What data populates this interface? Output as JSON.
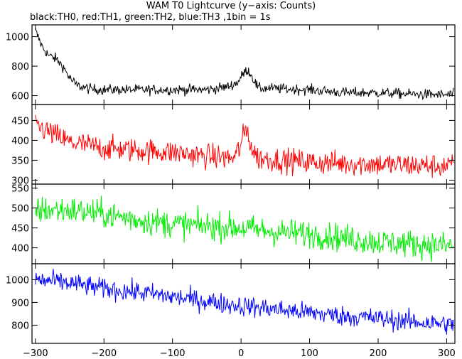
{
  "title": "WAM T0 Lightcurve (y−axis: Counts)",
  "subtitle": "black:TH0, red:TH1, green:TH2, blue:TH3 ,1bin = 1s",
  "chart_data": {
    "type": "line",
    "x_range": [
      -305,
      312
    ],
    "x_ticks": [
      -300,
      -200,
      -100,
      0,
      100,
      200,
      300
    ],
    "x_tick_labels": [
      "−300",
      "−200",
      "−100",
      "0",
      "100",
      "200",
      "300"
    ],
    "panels": [
      {
        "name": "TH0",
        "color": "#000000",
        "ylim": [
          540,
          1080
        ],
        "y_ticks": [
          600,
          800,
          1000
        ],
        "y_tick_labels": [
          "600",
          "800",
          "1000"
        ],
        "x": [
          -300,
          -290,
          -280,
          -270,
          -260,
          -250,
          -240,
          -220,
          -200,
          -150,
          -100,
          -50,
          -20,
          -5,
          5,
          10,
          15,
          25,
          40,
          100,
          150,
          200,
          250,
          300,
          310
        ],
        "y": [
          1040,
          930,
          870,
          850,
          800,
          720,
          670,
          645,
          640,
          640,
          640,
          640,
          660,
          690,
          760,
          775,
          740,
          650,
          650,
          640,
          620,
          620,
          610,
          605,
          610
        ],
        "noise": 25
      },
      {
        "name": "TH1",
        "color": "#ff0000",
        "ylim": [
          290,
          490
        ],
        "y_ticks": [
          300,
          350,
          400,
          450
        ],
        "y_tick_labels": [
          "300",
          "350",
          "400",
          "450"
        ],
        "x": [
          -300,
          -280,
          -250,
          -200,
          -150,
          -100,
          -50,
          -10,
          0,
          5,
          10,
          15,
          25,
          100,
          200,
          300,
          310
        ],
        "y": [
          440,
          420,
          395,
          380,
          375,
          370,
          360,
          355,
          390,
          420,
          425,
          380,
          355,
          345,
          340,
          335,
          335
        ],
        "noise": 22
      },
      {
        "name": "TH2",
        "color": "#00ee00",
        "ylim": [
          360,
          560
        ],
        "y_ticks": [
          400,
          450,
          500,
          550
        ],
        "y_tick_labels": [
          "400",
          "450",
          "500",
          "550"
        ],
        "x": [
          -300,
          -250,
          -200,
          -150,
          -100,
          -50,
          0,
          50,
          100,
          150,
          200,
          250,
          300,
          310
        ],
        "y": [
          495,
          495,
          485,
          470,
          460,
          455,
          450,
          440,
          435,
          425,
          415,
          410,
          405,
          405
        ],
        "noise": 25
      },
      {
        "name": "TH3",
        "color": "#0000ff",
        "ylim": [
          720,
          1070
        ],
        "y_ticks": [
          800,
          900,
          1000
        ],
        "y_tick_labels": [
          "800",
          "900",
          "1000"
        ],
        "x": [
          -300,
          -250,
          -200,
          -150,
          -100,
          -50,
          0,
          50,
          100,
          150,
          200,
          250,
          300,
          310
        ],
        "y": [
          1000,
          985,
          960,
          945,
          925,
          905,
          885,
          870,
          855,
          840,
          830,
          815,
          805,
          800
        ],
        "noise": 32
      }
    ]
  }
}
